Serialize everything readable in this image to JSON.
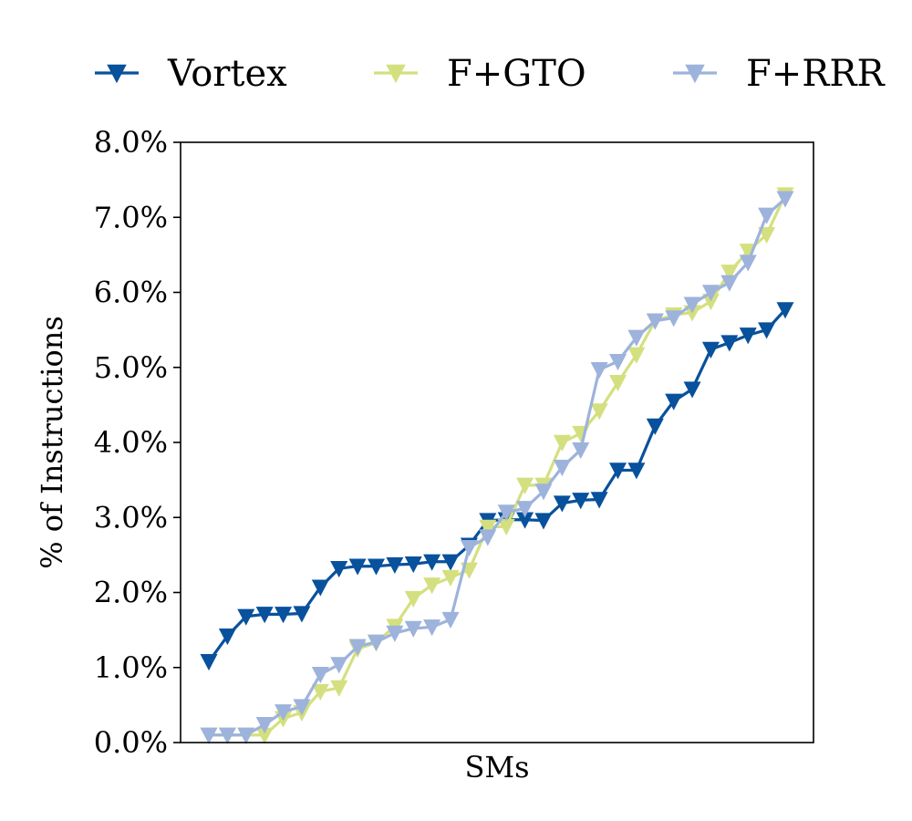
{
  "chart_data": {
    "type": "line",
    "xlabel": "SMs",
    "ylabel": "% of Instructions",
    "ylim": [
      0,
      8
    ],
    "y_ticks": [
      0,
      1,
      2,
      3,
      4,
      5,
      6,
      7,
      8
    ],
    "y_tick_labels": [
      "0.0%",
      "1.0%",
      "2.0%",
      "3.0%",
      "4.0%",
      "5.0%",
      "6.0%",
      "7.0%",
      "8.0%"
    ],
    "x_tick_labels": [],
    "grid": false,
    "legend_position": "top",
    "marker": "triangle-down",
    "series": [
      {
        "name": "Vortex",
        "color": "#08519c",
        "values": [
          1.08,
          1.42,
          1.68,
          1.71,
          1.71,
          1.72,
          2.07,
          2.32,
          2.35,
          2.35,
          2.37,
          2.38,
          2.41,
          2.41,
          2.63,
          2.96,
          2.97,
          2.97,
          2.96,
          3.19,
          3.23,
          3.24,
          3.63,
          3.63,
          4.22,
          4.55,
          4.71,
          5.24,
          5.33,
          5.43,
          5.5,
          5.77
        ]
      },
      {
        "name": "F+GTO",
        "color": "#d4e07f",
        "values": [
          0.1,
          0.1,
          0.1,
          0.1,
          0.32,
          0.4,
          0.68,
          0.73,
          1.25,
          1.33,
          1.55,
          1.92,
          2.1,
          2.2,
          2.3,
          2.87,
          2.88,
          3.43,
          3.43,
          4.0,
          4.12,
          4.42,
          4.8,
          5.17,
          5.62,
          5.7,
          5.73,
          5.88,
          6.27,
          6.55,
          6.77,
          7.3
        ]
      },
      {
        "name": "F+RRR",
        "color": "#9db3db",
        "values": [
          0.1,
          0.1,
          0.1,
          0.24,
          0.41,
          0.48,
          0.91,
          1.04,
          1.28,
          1.34,
          1.46,
          1.52,
          1.54,
          1.64,
          2.6,
          2.74,
          3.07,
          3.12,
          3.35,
          3.67,
          3.9,
          4.97,
          5.08,
          5.4,
          5.62,
          5.66,
          5.84,
          6.0,
          6.13,
          6.4,
          7.03,
          7.25
        ]
      }
    ]
  }
}
